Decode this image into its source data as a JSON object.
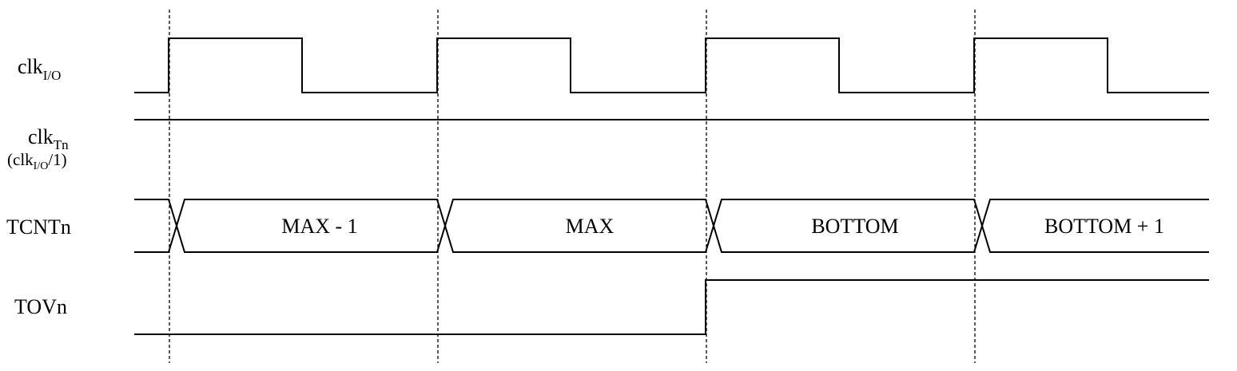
{
  "signals": {
    "clkio": {
      "main": "clk",
      "sub": "I/O"
    },
    "clktn": {
      "main": "clk",
      "sub": "Tn",
      "line2_open": "(clk",
      "line2_sub": "I/O",
      "line2_close": "/1)"
    },
    "tcntn": {
      "label": "TCNTn"
    },
    "tovn": {
      "label": "TOVn"
    }
  },
  "tcnt_values": [
    "MAX - 1",
    "MAX",
    "BOTTOM",
    "BOTTOM + 1"
  ],
  "colors": {
    "line": "#000000",
    "background": "#ffffff"
  }
}
